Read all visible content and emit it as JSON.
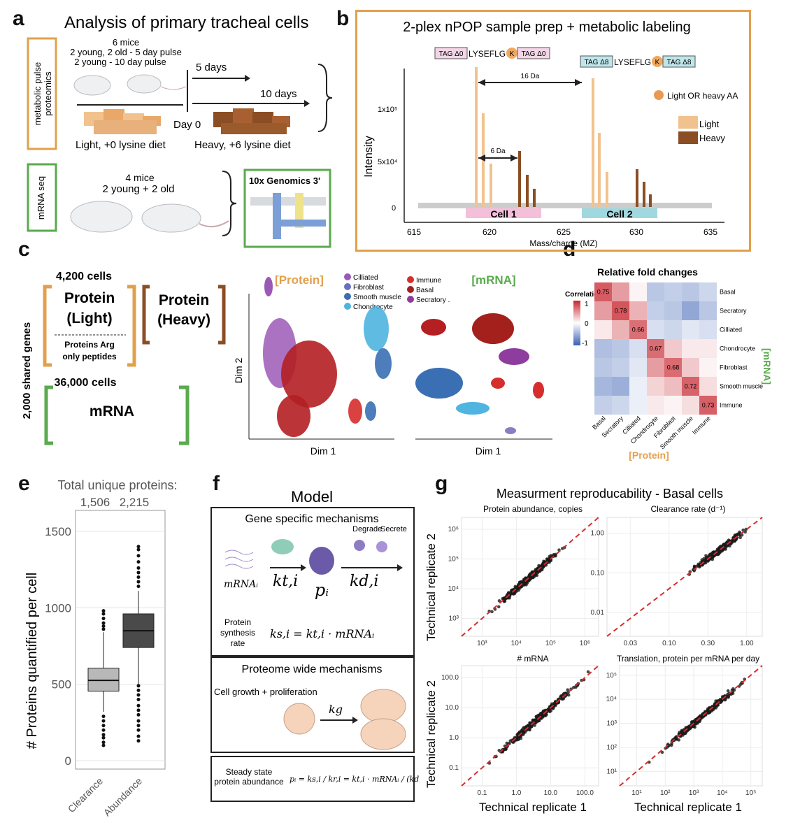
{
  "panel_letters": {
    "a": "a",
    "b": "b",
    "c": "c",
    "d": "d",
    "e": "e",
    "f": "f",
    "g": "g"
  },
  "colors": {
    "light": "#f2c28e",
    "heavy": "#8b4e24",
    "orange_border": "#e2a04c",
    "green_border": "#5aaa4e",
    "red": "#c8262f",
    "blue": "#3a5fb4"
  },
  "panel_a": {
    "title": "Analysis of primary tracheal cells",
    "pulse_label_1": "metabolic pulse",
    "pulse_label_2": "proteomics",
    "mice_line1": "6 mice",
    "mice_line2": "2 young, 2 old - 5 day pulse",
    "mice_line3": "2 young - 10 day pulse",
    "day0": "Day 0",
    "five_days": "5 days",
    "ten_days": "10 days",
    "light_diet": "Light, +0 lysine diet",
    "heavy_diet": "Heavy, +6 lysine diet",
    "mrna_label": "mRNA seq",
    "mrna_mice_1": "4 mice",
    "mrna_mice_2": "2 young  + 2 old",
    "genomics": "10x Genomics 3'"
  },
  "panel_b": {
    "title": "2-plex nPOP sample prep + metabolic labeling",
    "tag0_left": "TAG Δ0",
    "tag0_seq": "LYSEFLG",
    "tag0_right": "TAG Δ0",
    "tag8_left": "TAG Δ8",
    "tag8_seq": "LYSEFLG",
    "tag8_right": "TAG Δ8",
    "k": "K",
    "delta16": "16 Da",
    "delta6": "6 Da",
    "legend_aa": "Light OR heavy AA",
    "legend_light": "Light",
    "legend_heavy": "Heavy",
    "cell1": "Cell 1",
    "cell2": "Cell 2",
    "y_label": "Intensity",
    "x_label": "Mass/charge (MZ)",
    "y_ticks": [
      "1x10⁵",
      "5x10⁴",
      "0"
    ],
    "x_ticks": [
      "615",
      "620",
      "625",
      "630",
      "635"
    ]
  },
  "panel_c": {
    "cells_4200": "4,200 cells",
    "protein_light_1": "Protein",
    "protein_light_2": "(Light)",
    "protein_heavy_1": "Protein",
    "protein_heavy_2": "(Heavy)",
    "arg_1": "Proteins Arg",
    "arg_2": "only peptides",
    "cells_36000": "36,000 cells",
    "mrna": "mRNA",
    "shared_genes": "2,000 shared genes",
    "protein_tag": "[Protein]",
    "mrna_tag": "[mRNA]",
    "dim1_a": "Dim 1",
    "dim1_b": "Dim 1",
    "dim2": "Dim 2",
    "legend": [
      {
        "label": "Cilliated",
        "color": "#9b59b6"
      },
      {
        "label": "Fibroblast",
        "color": "#6a6fc0"
      },
      {
        "label": "Smooth muscle",
        "color": "#3a6fb4"
      },
      {
        "label": "Chondrocyte",
        "color": "#4fb4e0"
      },
      {
        "label": "Immune",
        "color": "#d62d2d"
      },
      {
        "label": "Basal",
        "color": "#a3201d"
      },
      {
        "label": "Secratory .",
        "color": "#8e3c9e"
      }
    ]
  },
  "panel_d": {
    "title": "Relative fold changes",
    "corr_label": "Correlation",
    "scale_ticks": [
      "1",
      "0",
      "-1"
    ],
    "mrna_axis": "[mRNA]",
    "protein_axis": "[Protein]",
    "rows": [
      "Basal",
      "Secratory",
      "Cilliated",
      "Chondrocyte",
      "Fibroblast",
      "Smooth muscle",
      "Immune"
    ],
    "cols": [
      "Basal",
      "Secratory",
      "Cilliated",
      "Chondrocyte",
      "Fibroblast",
      "Smooth muscle",
      "Immune"
    ],
    "diag_labels": [
      "0.75",
      "0.78",
      "0.66",
      "0.67",
      "0.68",
      "0.72",
      "0.73"
    ],
    "matrix": [
      [
        0.75,
        0.45,
        0.05,
        -0.35,
        -0.3,
        -0.35,
        -0.25
      ],
      [
        0.45,
        0.78,
        0.35,
        -0.3,
        -0.35,
        -0.55,
        -0.35
      ],
      [
        0.1,
        0.35,
        0.66,
        -0.2,
        -0.25,
        -0.15,
        -0.2
      ],
      [
        -0.4,
        -0.35,
        -0.2,
        0.67,
        0.25,
        0.1,
        0.1
      ],
      [
        -0.35,
        -0.3,
        -0.15,
        0.45,
        0.68,
        0.25,
        0.05
      ],
      [
        -0.45,
        -0.5,
        -0.1,
        0.2,
        0.3,
        0.72,
        0.15
      ],
      [
        -0.3,
        -0.25,
        -0.1,
        0.1,
        0.05,
        0.15,
        0.73
      ]
    ]
  },
  "chart_data": [
    {
      "type": "box",
      "title": "Total unique proteins:",
      "ylabel": "# Proteins quantified per cell",
      "categories": [
        "Clearance",
        "Abundance"
      ],
      "totals": [
        "1,506",
        "2,215"
      ],
      "ylim": [
        0,
        1600
      ],
      "yticks": [
        "0",
        "500",
        "1000",
        "1500"
      ],
      "boxes": [
        {
          "name": "Clearance",
          "q1": 455,
          "median": 525,
          "q3": 605,
          "whisker_low": 320,
          "whisker_high": 840,
          "outliers": [
            100,
            120,
            150,
            170,
            200,
            230,
            260,
            290,
            860,
            880,
            900,
            930,
            960,
            980
          ]
        },
        {
          "name": "Abundance",
          "q1": 740,
          "median": 850,
          "q3": 960,
          "whisker_low": 500,
          "whisker_high": 1110,
          "outliers": [
            130,
            160,
            200,
            230,
            260,
            300,
            330,
            360,
            400,
            430,
            460,
            490,
            1140,
            1170,
            1200,
            1230,
            1260,
            1300,
            1340,
            1380,
            1400
          ]
        }
      ]
    },
    {
      "type": "scatter",
      "title": "Measurment reproducability - Basal cells",
      "panels": [
        {
          "title": "Protein abundance, copies",
          "log": true,
          "xticks": [
            "10³",
            "10⁴",
            "10⁵",
            "10⁶"
          ],
          "yticks": [
            "10³",
            "10⁴",
            "10⁵",
            "10⁶"
          ],
          "range": [
            2.3,
            6.2
          ]
        },
        {
          "title": "Clearance rate (d⁻¹)",
          "log": true,
          "xticks": [
            "0.03",
            "0.10",
            "0.30",
            "1.00"
          ],
          "yticks": [
            "0.01",
            "0.10",
            "1.00"
          ],
          "range": [
            -2.1,
            0.2
          ]
        },
        {
          "title": "# mRNA",
          "log": true,
          "xticks": [
            "0.1",
            "1.0",
            "10.0",
            "100.0"
          ],
          "yticks": [
            "0.1",
            "1.0",
            "10.0",
            "100.0"
          ],
          "range": [
            -1.1,
            2.6
          ]
        },
        {
          "title": "Translation, protein per mRNA per day",
          "log": true,
          "xticks": [
            "10¹",
            "10²",
            "10³",
            "10⁴",
            "10⁵"
          ],
          "yticks": [
            "10¹",
            "10²",
            "10³",
            "10⁴",
            "10⁵"
          ],
          "range": [
            0.9,
            5.1
          ]
        }
      ],
      "xlabel": "Technical replicate 1",
      "ylabel": "Technical replicate 2"
    }
  ],
  "panel_f": {
    "model": "Model",
    "gene_specific": "Gene specific mechanisms",
    "degrade": "Degrade",
    "secrete": "Secrete",
    "mrna_i": "mRNAᵢ",
    "kti": "kt,i",
    "pi": "pᵢ",
    "kdi": "kd,i",
    "synth_1": "Protein",
    "synth_2": "synthesis",
    "synth_3": "rate",
    "synth_eq": "ks,i = kt,i · mRNAᵢ",
    "proteome_wide": "Proteome wide mechanisms",
    "growth": "Cell growth + proliferation",
    "kg": "kg",
    "steady_1": "Steady state",
    "steady_2": "protein abundance",
    "steady_eq": "pᵢ = ks,i / kr,i = kt,i · mRNAᵢ / (kd,i + kg)"
  },
  "panel_g": {
    "title": "Measurment reproducability - Basal cells",
    "xlabel_left": "Technical replicate 1",
    "xlabel_right": "Technical replicate 1",
    "ylabel_top": "Technical replicate 2",
    "ylabel_bottom": "Technical replicate 2",
    "sub_titles": [
      "Protein abundance, copies",
      "Clearance rate (d⁻¹)",
      "# mRNA",
      "Translation, protein per mRNA per day"
    ]
  }
}
